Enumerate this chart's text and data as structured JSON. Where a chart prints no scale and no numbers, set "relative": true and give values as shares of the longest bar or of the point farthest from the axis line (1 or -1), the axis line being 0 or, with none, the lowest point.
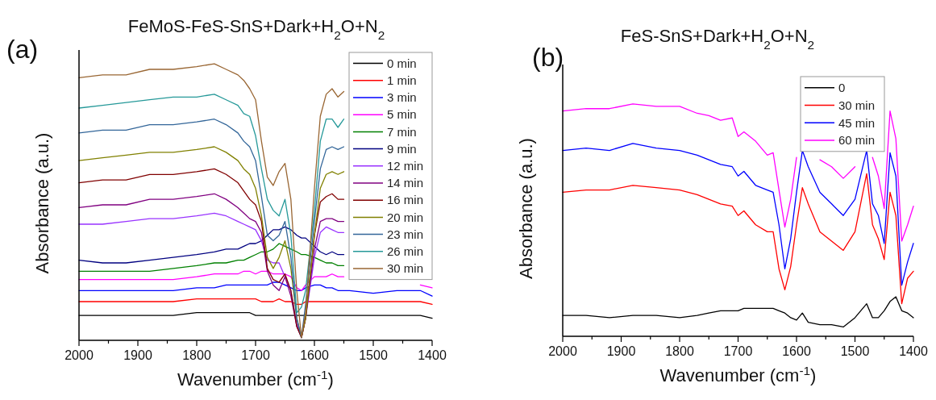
{
  "chart_data": [
    {
      "type": "line",
      "title": "FeMoS-FeS-SnS+Dark+H$_{2}$O+N$_{2}$",
      "xlabel": "Wavenumber (cm$^{-1}$)",
      "ylabel": "Absorbance (a.u.)",
      "annotations": [
        "(a)"
      ],
      "relative": true,
      "legend": "top right",
      "xlim": [
        2000,
        1400
      ],
      "xticks": [
        2000,
        {
          "value": 1950,
          "label": null
        },
        1900,
        {
          "value": 1850,
          "label": null
        },
        1800,
        {
          "value": 1750,
          "label": null
        },
        1700,
        {
          "value": 1650,
          "label": null
        },
        1600,
        {
          "value": 1550,
          "label": null
        },
        1500,
        {
          "value": 1450,
          "label": null
        },
        1400
      ],
      "x": [
        2000,
        1960,
        1920,
        1880,
        1840,
        1800,
        1770,
        1750,
        1730,
        1720,
        1710,
        1700,
        1690,
        1680,
        1670,
        1660,
        1650,
        1640,
        1630,
        1622,
        1615,
        1600,
        1590,
        1580,
        1570,
        1560,
        1550,
        1540,
        1500,
        1460,
        1420,
        1400
      ],
      "series": [
        {
          "name": "0 min",
          "color": "#000000",
          "values": [
            0.09,
            0.09,
            0.09,
            0.09,
            0.09,
            0.1,
            0.1,
            0.1,
            0.1,
            0.1,
            0.1,
            0.09,
            0.09,
            0.09,
            0.09,
            0.09,
            0.09,
            0.09,
            0.09,
            0.09,
            0.09,
            0.09,
            0.09,
            0.09,
            0.09,
            0.09,
            0.09,
            0.09,
            0.09,
            0.09,
            0.09,
            0.08
          ]
        },
        {
          "name": "1 min",
          "color": "#ff0000",
          "values": [
            0.14,
            0.14,
            0.14,
            0.14,
            0.14,
            0.15,
            0.15,
            0.15,
            0.15,
            0.15,
            0.15,
            0.15,
            0.14,
            0.14,
            0.14,
            0.15,
            0.14,
            0.14,
            0.13,
            0.13,
            0.14,
            0.14,
            0.14,
            0.14,
            0.14,
            0.14,
            0.14,
            0.14,
            0.14,
            0.14,
            0.14,
            0.13
          ]
        },
        {
          "name": "3 min",
          "color": "#0000ff",
          "values": [
            0.18,
            0.18,
            0.18,
            0.18,
            0.18,
            0.19,
            0.19,
            0.2,
            0.2,
            0.2,
            0.2,
            0.2,
            0.2,
            0.2,
            0.21,
            0.21,
            0.2,
            0.19,
            0.18,
            0.18,
            0.19,
            0.2,
            0.2,
            0.19,
            0.19,
            0.18,
            0.18,
            0.18,
            0.17,
            0.18,
            0.18,
            0.16
          ]
        },
        {
          "name": "5 min",
          "color": "#ff00ff",
          "values": [
            0.22,
            0.22,
            0.22,
            0.22,
            0.22,
            0.23,
            0.24,
            0.24,
            0.24,
            0.25,
            0.25,
            0.24,
            0.25,
            0.25,
            0.24,
            0.24,
            0.24,
            0.23,
            0.19,
            0.18,
            0.2,
            0.23,
            0.23,
            0.23,
            0.24,
            0.23,
            0.23,
            null,
            null,
            null,
            0.2,
            0.19
          ]
        },
        {
          "name": "7 min",
          "color": "#008000",
          "values": [
            0.25,
            0.25,
            0.25,
            0.25,
            0.26,
            0.27,
            0.28,
            0.28,
            0.29,
            0.29,
            0.3,
            0.31,
            0.32,
            0.32,
            0.33,
            0.35,
            0.34,
            0.33,
            0.32,
            0.31,
            0.31,
            0.3,
            0.29,
            0.28,
            0.28,
            0.27,
            0.27,
            null,
            null,
            null,
            null,
            null
          ]
        },
        {
          "name": "9 min",
          "color": "#000080",
          "values": [
            0.29,
            0.28,
            0.28,
            0.29,
            0.3,
            0.31,
            0.32,
            0.33,
            0.33,
            0.34,
            0.35,
            0.35,
            0.36,
            0.38,
            0.4,
            0.4,
            0.41,
            0.4,
            0.38,
            0.37,
            0.37,
            0.34,
            0.32,
            0.31,
            0.32,
            0.31,
            0.31,
            null,
            null,
            null,
            null,
            null
          ]
        },
        {
          "name": "12 min",
          "color": "#9933ff",
          "values": [
            0.42,
            0.42,
            0.43,
            0.44,
            0.44,
            0.45,
            0.46,
            0.45,
            0.43,
            0.42,
            0.41,
            0.4,
            0.36,
            0.29,
            0.28,
            0.28,
            0.23,
            0.18,
            0.06,
            0.01,
            0.08,
            0.3,
            0.39,
            0.41,
            0.4,
            0.39,
            0.39,
            null,
            null,
            null,
            null,
            null
          ]
        },
        {
          "name": "14 min",
          "color": "#800080",
          "values": [
            0.48,
            0.49,
            0.49,
            0.51,
            0.51,
            0.52,
            0.53,
            0.51,
            0.48,
            0.46,
            0.44,
            0.43,
            0.39,
            0.25,
            0.2,
            0.18,
            0.23,
            0.16,
            0.05,
            0.01,
            0.08,
            0.33,
            0.43,
            0.44,
            0.44,
            0.43,
            0.43,
            null,
            null,
            null,
            null,
            null
          ]
        },
        {
          "name": "16 min",
          "color": "#800000",
          "values": [
            0.57,
            0.58,
            0.58,
            0.6,
            0.6,
            0.61,
            0.62,
            0.6,
            0.57,
            0.54,
            0.51,
            0.49,
            0.43,
            0.26,
            0.22,
            0.21,
            0.24,
            0.18,
            0.05,
            0.01,
            0.08,
            0.38,
            0.5,
            0.52,
            0.53,
            0.51,
            0.51,
            null,
            null,
            null,
            null,
            null
          ]
        },
        {
          "name": "20 min",
          "color": "#808000",
          "values": [
            0.65,
            0.66,
            0.67,
            0.68,
            0.68,
            0.69,
            0.7,
            0.68,
            0.65,
            0.62,
            0.6,
            0.55,
            0.45,
            0.3,
            0.26,
            0.3,
            0.36,
            0.26,
            0.08,
            0.01,
            0.08,
            0.38,
            0.55,
            0.6,
            0.61,
            0.6,
            0.61,
            null,
            null,
            null,
            null,
            null
          ]
        },
        {
          "name": "23 min",
          "color": "#336699",
          "values": [
            0.75,
            0.76,
            0.76,
            0.78,
            0.78,
            0.79,
            0.8,
            0.78,
            0.75,
            0.72,
            0.7,
            0.65,
            0.52,
            0.38,
            0.36,
            0.38,
            0.43,
            0.3,
            0.08,
            0.01,
            0.13,
            0.43,
            0.62,
            0.69,
            0.7,
            0.69,
            0.7,
            null,
            null,
            null,
            null,
            null
          ]
        },
        {
          "name": "26 min",
          "color": "#269999",
          "values": [
            0.84,
            0.85,
            0.86,
            0.87,
            0.88,
            0.88,
            0.89,
            0.87,
            0.85,
            0.82,
            0.81,
            0.74,
            0.62,
            0.51,
            0.47,
            0.45,
            0.51,
            0.38,
            0.1,
            0.12,
            0.18,
            0.47,
            0.72,
            0.8,
            0.8,
            0.77,
            0.8,
            null,
            null,
            null,
            null,
            null
          ]
        },
        {
          "name": "30 min",
          "color": "#996633",
          "values": [
            0.95,
            0.96,
            0.96,
            0.98,
            0.98,
            0.99,
            1.0,
            0.98,
            0.96,
            0.94,
            0.91,
            0.87,
            0.72,
            0.59,
            0.56,
            0.61,
            0.64,
            0.51,
            0.18,
            0.01,
            0.1,
            0.55,
            0.81,
            0.89,
            0.91,
            0.88,
            0.9,
            null,
            null,
            null,
            null,
            null
          ]
        }
      ]
    },
    {
      "type": "line",
      "title": "FeS-SnS+Dark+H$_{2}$O+N$_{2}$",
      "xlabel": "Wavenumber (cm$^{-1}$)",
      "ylabel": "Absorbance (a.u.)",
      "annotations": [
        "(b)"
      ],
      "relative": true,
      "legend": "top right",
      "xlim": [
        2000,
        1400
      ],
      "xticks": [
        2000,
        {
          "value": 1950,
          "label": null
        },
        1900,
        {
          "value": 1850,
          "label": null
        },
        1800,
        {
          "value": 1750,
          "label": null
        },
        1700,
        {
          "value": 1650,
          "label": null
        },
        1600,
        {
          "value": 1550,
          "label": null
        },
        1500,
        {
          "value": 1450,
          "label": null
        },
        1400
      ],
      "x": [
        2000,
        1960,
        1920,
        1880,
        1840,
        1800,
        1770,
        1750,
        1730,
        1710,
        1700,
        1690,
        1670,
        1650,
        1640,
        1630,
        1620,
        1610,
        1600,
        1590,
        1580,
        1560,
        1540,
        1520,
        1500,
        1480,
        1470,
        1460,
        1450,
        1440,
        1430,
        1420,
        1410,
        1400
      ],
      "series": [
        {
          "name": "0",
          "color": "#000000",
          "values": [
            0.09,
            0.09,
            0.08,
            0.09,
            0.09,
            0.08,
            0.09,
            0.1,
            0.11,
            0.11,
            0.11,
            0.12,
            0.12,
            0.12,
            0.12,
            0.11,
            0.1,
            0.08,
            0.07,
            0.1,
            0.06,
            0.05,
            0.05,
            0.04,
            0.08,
            0.14,
            0.08,
            0.08,
            0.11,
            0.15,
            0.17,
            0.11,
            0.1,
            0.08
          ]
        },
        {
          "name": "30 min",
          "color": "#ff0000",
          "values": [
            0.62,
            0.63,
            0.63,
            0.65,
            0.64,
            0.63,
            0.61,
            0.59,
            0.57,
            0.56,
            0.52,
            0.54,
            0.48,
            0.45,
            0.45,
            0.29,
            0.2,
            0.3,
            0.48,
            0.64,
            0.57,
            0.45,
            0.41,
            0.37,
            0.45,
            0.7,
            0.48,
            0.42,
            0.33,
            0.62,
            0.52,
            0.14,
            0.25,
            0.28
          ]
        },
        {
          "name": "45 min",
          "color": "#0000ff",
          "values": [
            0.8,
            0.81,
            0.8,
            0.83,
            0.81,
            0.8,
            0.78,
            0.76,
            0.74,
            0.73,
            0.69,
            0.71,
            0.65,
            0.63,
            0.62,
            0.48,
            0.29,
            0.42,
            0.62,
            0.8,
            0.73,
            0.62,
            0.57,
            0.52,
            0.59,
            0.8,
            0.57,
            0.52,
            0.4,
            0.79,
            0.69,
            0.22,
            0.32,
            0.4
          ]
        },
        {
          "name": "60 min",
          "color": "#ff00ff",
          "values": [
            0.97,
            0.98,
            0.98,
            1.0,
            0.99,
            0.99,
            0.96,
            0.95,
            0.93,
            0.94,
            0.86,
            0.88,
            0.84,
            0.78,
            0.79,
            0.63,
            0.47,
            0.59,
            0.77,
            null,
            null,
            0.76,
            0.73,
            0.68,
            0.73,
            null,
            0.77,
            0.69,
            0.55,
            0.97,
            0.85,
            0.41,
            0.48,
            0.56
          ]
        }
      ]
    }
  ]
}
